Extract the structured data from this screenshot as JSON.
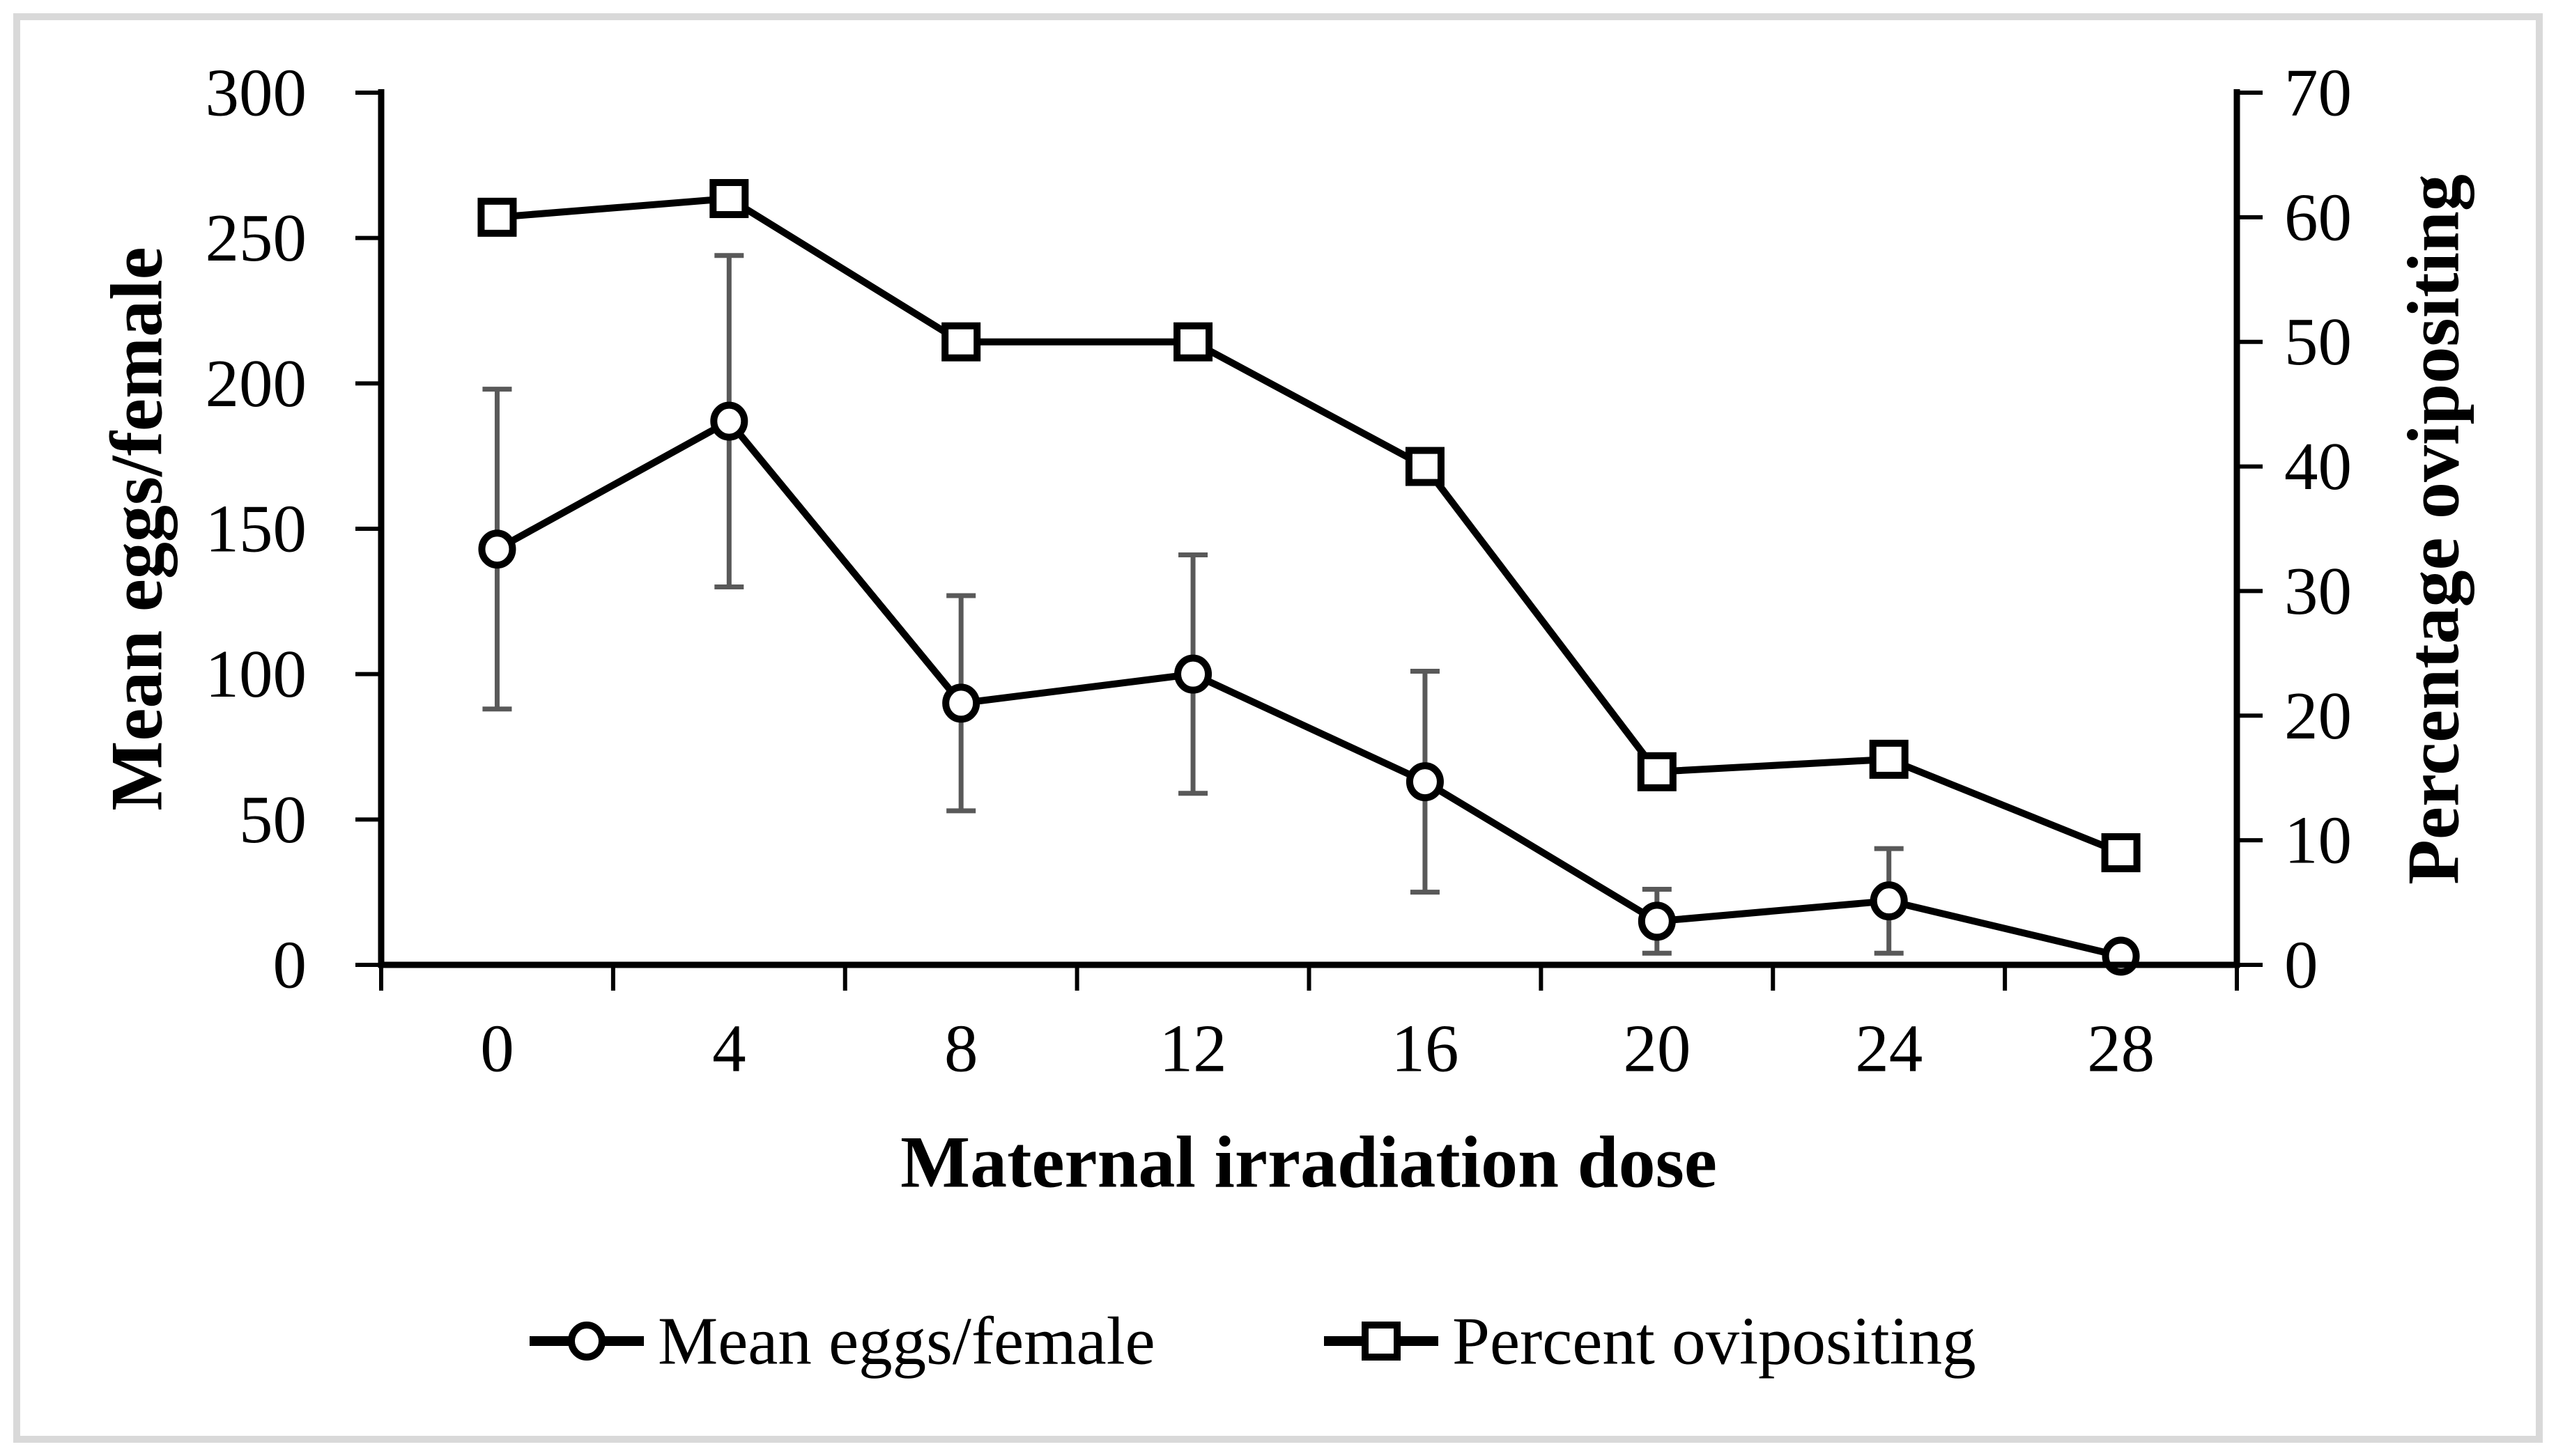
{
  "figure": {
    "colors": {
      "background": "#ffffff",
      "frame_border": "#d9d9d9",
      "series": "#000000",
      "error_bars": "#595959",
      "text": "#000000"
    }
  },
  "chart_data": {
    "type": "line",
    "title": "",
    "grid": false,
    "legend_position": "bottom",
    "x": {
      "label": "Maternal irradiation dose",
      "categories": [
        "0",
        "4",
        "8",
        "12",
        "16",
        "20",
        "24",
        "28"
      ]
    },
    "y_left": {
      "label": "Mean eggs/female",
      "min": 0,
      "max": 300,
      "step": 50,
      "tick_labels": [
        "0",
        "50",
        "100",
        "150",
        "200",
        "250",
        "300"
      ]
    },
    "y_right": {
      "label": "Percentage ovipositing",
      "min": 0,
      "max": 70,
      "step": 10,
      "tick_labels": [
        "0",
        "10",
        "20",
        "30",
        "40",
        "50",
        "60",
        "70"
      ]
    },
    "series": [
      {
        "name": "Mean eggs/female",
        "axis": "left",
        "marker": "circle",
        "values": [
          143,
          187,
          90,
          100,
          63,
          15,
          22,
          3
        ],
        "error_bars": [
          55,
          57,
          37,
          41,
          38,
          11,
          18,
          0
        ]
      },
      {
        "name": "Percent ovipositing",
        "axis": "right",
        "marker": "square",
        "values": [
          60,
          61.5,
          50,
          50,
          40,
          15.5,
          16.5,
          9
        ],
        "error_bars": null
      }
    ],
    "legend": [
      "Mean eggs/female",
      "Percent ovipositing"
    ]
  }
}
